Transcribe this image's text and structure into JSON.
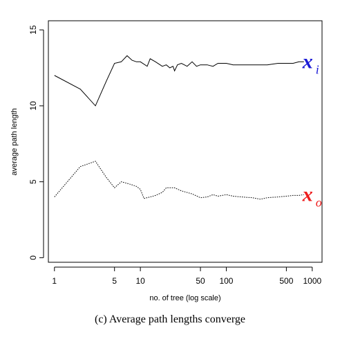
{
  "caption": "(c) Average path lengths converge",
  "chart_data": {
    "type": "line",
    "xlabel": "no. of tree (log scale)",
    "ylabel": "average path length",
    "xscale": "log",
    "xlim": [
      0.85,
      1300
    ],
    "ylim": [
      -0.3,
      15.6
    ],
    "xticks": [
      1,
      5,
      10,
      50,
      100,
      500,
      1000
    ],
    "yticks": [
      0,
      5,
      10,
      15
    ],
    "series": [
      {
        "name": "x_i",
        "label_main": "x",
        "label_sub": "i",
        "label_color": "#1a1ad6",
        "line_style": "solid",
        "points": [
          [
            1,
            12.0
          ],
          [
            2,
            11.1
          ],
          [
            3,
            10.0
          ],
          [
            4,
            11.6
          ],
          [
            5,
            12.8
          ],
          [
            6,
            12.9
          ],
          [
            7,
            13.3
          ],
          [
            8,
            13.0
          ],
          [
            9,
            12.9
          ],
          [
            10,
            12.9
          ],
          [
            12,
            12.6
          ],
          [
            13,
            13.1
          ],
          [
            15,
            12.9
          ],
          [
            18,
            12.6
          ],
          [
            20,
            12.7
          ],
          [
            22,
            12.5
          ],
          [
            24,
            12.6
          ],
          [
            25,
            12.3
          ],
          [
            27,
            12.7
          ],
          [
            30,
            12.8
          ],
          [
            35,
            12.6
          ],
          [
            40,
            12.9
          ],
          [
            45,
            12.6
          ],
          [
            50,
            12.7
          ],
          [
            60,
            12.7
          ],
          [
            70,
            12.6
          ],
          [
            80,
            12.8
          ],
          [
            100,
            12.8
          ],
          [
            120,
            12.7
          ],
          [
            150,
            12.7
          ],
          [
            200,
            12.7
          ],
          [
            250,
            12.7
          ],
          [
            300,
            12.7
          ],
          [
            400,
            12.8
          ],
          [
            500,
            12.8
          ],
          [
            600,
            12.8
          ],
          [
            700,
            12.9
          ],
          [
            800,
            12.9
          ]
        ]
      },
      {
        "name": "x_o",
        "label_main": "x",
        "label_sub": "o",
        "label_color": "#ee1c1c",
        "line_style": "dotted",
        "points": [
          [
            1,
            4.0
          ],
          [
            2,
            6.0
          ],
          [
            3,
            6.35
          ],
          [
            4,
            5.3
          ],
          [
            5,
            4.6
          ],
          [
            6,
            5.0
          ],
          [
            7,
            4.9
          ],
          [
            8,
            4.8
          ],
          [
            9,
            4.7
          ],
          [
            10,
            4.5
          ],
          [
            11,
            3.9
          ],
          [
            13,
            4.0
          ],
          [
            15,
            4.1
          ],
          [
            18,
            4.3
          ],
          [
            20,
            4.6
          ],
          [
            25,
            4.6
          ],
          [
            30,
            4.4
          ],
          [
            40,
            4.2
          ],
          [
            50,
            3.95
          ],
          [
            60,
            4.0
          ],
          [
            70,
            4.15
          ],
          [
            80,
            4.05
          ],
          [
            100,
            4.15
          ],
          [
            120,
            4.05
          ],
          [
            150,
            4.0
          ],
          [
            200,
            3.95
          ],
          [
            250,
            3.85
          ],
          [
            300,
            3.95
          ],
          [
            400,
            4.0
          ],
          [
            500,
            4.05
          ],
          [
            600,
            4.1
          ],
          [
            700,
            4.1
          ],
          [
            800,
            4.15
          ]
        ]
      }
    ]
  }
}
